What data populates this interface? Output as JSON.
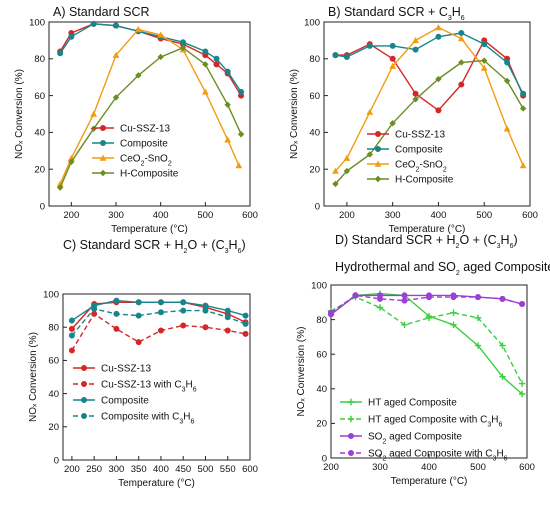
{
  "chart_data": [
    {
      "type": "line",
      "title": "A) Standard SCR",
      "xlabel": "Temperature (°C)",
      "ylabel": "NOₓ Conversion (%)",
      "xlim": [
        150,
        600
      ],
      "ylim": [
        0,
        100
      ],
      "xticks": [
        200,
        300,
        400,
        500,
        600
      ],
      "yticks": [
        0,
        20,
        40,
        60,
        80,
        100
      ],
      "legend_position": "bottom-left",
      "series": [
        {
          "name": "Cu-SSZ-13",
          "color": "#d62728",
          "marker": "circle",
          "dashed": false,
          "x": [
            175,
            200,
            250,
            300,
            350,
            400,
            450,
            500,
            525,
            550,
            580
          ],
          "y": [
            84,
            94,
            99,
            98,
            95,
            91,
            88,
            82,
            77,
            72,
            60
          ]
        },
        {
          "name": "Composite",
          "color": "#17868a",
          "marker": "circle",
          "dashed": false,
          "x": [
            175,
            200,
            250,
            300,
            350,
            400,
            450,
            500,
            525,
            550,
            580
          ],
          "y": [
            83,
            92,
            99,
            98,
            95,
            92,
            89,
            84,
            80,
            73,
            62
          ]
        },
        {
          "name": "CeO2-SnO2",
          "color": "#f39c12",
          "marker": "triangle",
          "dashed": false,
          "x": [
            175,
            200,
            250,
            300,
            350,
            400,
            450,
            500,
            550,
            575
          ],
          "y": [
            12,
            26,
            50,
            82,
            96,
            93,
            85,
            62,
            36,
            22
          ]
        },
        {
          "name": "H-Composite",
          "color": "#6b8e23",
          "marker": "diamond",
          "dashed": false,
          "x": [
            175,
            200,
            250,
            300,
            350,
            400,
            450,
            500,
            550,
            580
          ],
          "y": [
            10,
            24,
            42,
            59,
            71,
            81,
            86,
            77,
            55,
            39
          ]
        }
      ]
    },
    {
      "type": "line",
      "title": "B) Standard SCR + C3H6",
      "xlabel": "Temperature (°C)",
      "ylabel": "NOₓ Conversion (%)",
      "xlim": [
        150,
        600
      ],
      "ylim": [
        0,
        100
      ],
      "xticks": [
        200,
        300,
        400,
        500,
        600
      ],
      "yticks": [
        0,
        20,
        40,
        60,
        80,
        100
      ],
      "legend_position": "bottom-right",
      "series": [
        {
          "name": "Cu-SSZ-13",
          "color": "#d62728",
          "marker": "circle",
          "dashed": false,
          "x": [
            175,
            200,
            250,
            300,
            350,
            400,
            450,
            500,
            550,
            585
          ],
          "y": [
            82,
            82,
            88,
            80,
            61,
            52,
            66,
            90,
            80,
            60
          ]
        },
        {
          "name": "Composite",
          "color": "#17868a",
          "marker": "circle",
          "dashed": false,
          "x": [
            175,
            200,
            250,
            300,
            350,
            400,
            450,
            500,
            550,
            585
          ],
          "y": [
            82,
            81,
            87,
            87,
            85,
            92,
            94,
            88,
            78,
            61
          ]
        },
        {
          "name": "CeO2-SnO2",
          "color": "#f39c12",
          "marker": "triangle",
          "dashed": false,
          "x": [
            175,
            200,
            250,
            300,
            350,
            400,
            450,
            500,
            550,
            585
          ],
          "y": [
            19,
            26,
            51,
            76,
            90,
            97,
            91,
            75,
            42,
            22
          ]
        },
        {
          "name": "H-Composite",
          "color": "#6b8e23",
          "marker": "diamond",
          "dashed": false,
          "x": [
            175,
            200,
            250,
            300,
            350,
            400,
            450,
            500,
            550,
            585
          ],
          "y": [
            12,
            19,
            28,
            45,
            58,
            69,
            78,
            79,
            68,
            53
          ]
        }
      ]
    },
    {
      "type": "line",
      "title": "C) Standard SCR + H2O + (C3H6)",
      "xlabel": "Temperature (°C)",
      "ylabel": "NOₓ Conversion (%)",
      "xlim": [
        180,
        600
      ],
      "ylim": [
        0,
        100
      ],
      "xticks": [
        200,
        250,
        300,
        350,
        400,
        450,
        500,
        550,
        600
      ],
      "yticks": [
        0,
        20,
        40,
        60,
        80,
        100
      ],
      "legend_position": "bottom-left",
      "series": [
        {
          "name": "Cu-SSZ-13",
          "color": "#d62728",
          "marker": "circle",
          "dashed": false,
          "x": [
            200,
            250,
            300,
            350,
            400,
            450,
            500,
            550,
            590
          ],
          "y": [
            79,
            94,
            95,
            95,
            95,
            95,
            92,
            88,
            83
          ]
        },
        {
          "name": "Cu-SSZ-13 with C3H6",
          "color": "#d62728",
          "marker": "circle",
          "dashed": true,
          "x": [
            200,
            250,
            300,
            350,
            400,
            450,
            500,
            550,
            590
          ],
          "y": [
            66,
            88,
            79,
            71,
            78,
            81,
            80,
            78,
            76
          ]
        },
        {
          "name": "Composite",
          "color": "#17868a",
          "marker": "circle",
          "dashed": false,
          "x": [
            200,
            250,
            300,
            350,
            400,
            450,
            500,
            550,
            590
          ],
          "y": [
            84,
            93,
            96,
            95,
            95,
            95,
            93,
            90,
            87
          ]
        },
        {
          "name": "Composite with C3H6",
          "color": "#17868a",
          "marker": "circle",
          "dashed": true,
          "x": [
            200,
            250,
            300,
            350,
            400,
            450,
            500,
            550,
            590
          ],
          "y": [
            75,
            91,
            88,
            87,
            89,
            90,
            90,
            86,
            82
          ]
        }
      ]
    },
    {
      "type": "line",
      "title": "D) Standard SCR + H2O + (C3H6)",
      "subtitle": "Hydrothermal and SO2 aged Composite",
      "xlabel": "Temperature (°C)",
      "ylabel": "NOₓ Conversion (%)",
      "xlim": [
        200,
        600
      ],
      "ylim": [
        0,
        100
      ],
      "xticks": [
        200,
        300,
        400,
        500,
        600
      ],
      "yticks": [
        0,
        20,
        40,
        60,
        80,
        100
      ],
      "legend_position": "bottom-left",
      "series": [
        {
          "name": "HT aged Composite",
          "color": "#3dce3d",
          "marker": "plus",
          "dashed": false,
          "x": [
            200,
            250,
            300,
            350,
            400,
            450,
            500,
            550,
            590
          ],
          "y": [
            83,
            94,
            95,
            94,
            82,
            77,
            65,
            47,
            37
          ]
        },
        {
          "name": "HT aged Composite with C3H6",
          "color": "#3dce3d",
          "marker": "plus",
          "dashed": true,
          "x": [
            200,
            250,
            300,
            350,
            400,
            450,
            500,
            550,
            590
          ],
          "y": [
            85,
            93,
            87,
            77,
            81,
            84,
            81,
            65,
            43
          ]
        },
        {
          "name": "SO2 aged Composite",
          "color": "#9b3fd6",
          "marker": "circle",
          "dashed": false,
          "x": [
            200,
            250,
            300,
            350,
            400,
            450,
            500,
            550,
            590
          ],
          "y": [
            83,
            94,
            94,
            94,
            94,
            94,
            93,
            92,
            89
          ]
        },
        {
          "name": "SO2 aged Composite with C3H6",
          "color": "#9b3fd6",
          "marker": "circle",
          "dashed": true,
          "x": [
            200,
            250,
            300,
            350,
            400,
            450,
            500,
            550,
            590
          ],
          "y": [
            84,
            94,
            92,
            91,
            93,
            93,
            93,
            92,
            89
          ]
        }
      ]
    }
  ]
}
